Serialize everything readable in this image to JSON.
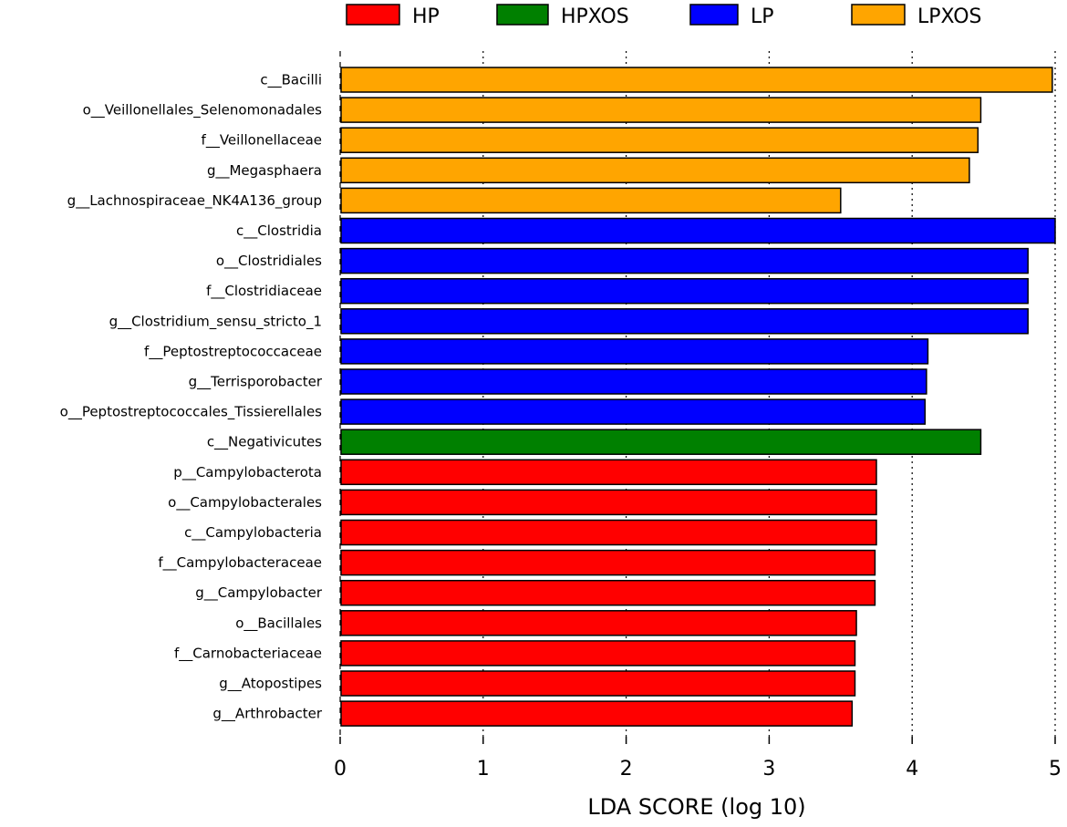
{
  "chart_data": {
    "type": "bar",
    "orientation": "horizontal",
    "title": "",
    "xlabel": "LDA SCORE (log 10)",
    "ylabel": "",
    "xlim": [
      0,
      5
    ],
    "x_ticks": [
      "0",
      "1",
      "2",
      "3",
      "4",
      "5"
    ],
    "grid": "vertical dotted",
    "legend_position": "top",
    "groups": [
      {
        "name": "HP",
        "color": "#ff0000"
      },
      {
        "name": "HPXOS",
        "color": "#008000"
      },
      {
        "name": "LP",
        "color": "#0000ff"
      },
      {
        "name": "LPXOS",
        "color": "#ffa500"
      }
    ],
    "bars": [
      {
        "label": "c__Bacilli",
        "value": 4.98,
        "group": "LPXOS"
      },
      {
        "label": "o__Veillonellales_Selenomonadales",
        "value": 4.48,
        "group": "LPXOS"
      },
      {
        "label": "f__Veillonellaceae",
        "value": 4.46,
        "group": "LPXOS"
      },
      {
        "label": "g__Megasphaera",
        "value": 4.4,
        "group": "LPXOS"
      },
      {
        "label": "g__Lachnospiraceae_NK4A136_group",
        "value": 3.5,
        "group": "LPXOS"
      },
      {
        "label": "c__Clostridia",
        "value": 5.0,
        "group": "LP"
      },
      {
        "label": "o__Clostridiales",
        "value": 4.81,
        "group": "LP"
      },
      {
        "label": "f__Clostridiaceae",
        "value": 4.81,
        "group": "LP"
      },
      {
        "label": "g__Clostridium_sensu_stricto_1",
        "value": 4.81,
        "group": "LP"
      },
      {
        "label": "f__Peptostreptococcaceae",
        "value": 4.11,
        "group": "LP"
      },
      {
        "label": "g__Terrisporobacter",
        "value": 4.1,
        "group": "LP"
      },
      {
        "label": "o__Peptostreptococcales_Tissierellales",
        "value": 4.09,
        "group": "LP"
      },
      {
        "label": "c__Negativicutes",
        "value": 4.48,
        "group": "HPXOS"
      },
      {
        "label": "p__Campylobacterota",
        "value": 3.75,
        "group": "HP"
      },
      {
        "label": "o__Campylobacterales",
        "value": 3.75,
        "group": "HP"
      },
      {
        "label": "c__Campylobacteria",
        "value": 3.75,
        "group": "HP"
      },
      {
        "label": "f__Campylobacteraceae",
        "value": 3.74,
        "group": "HP"
      },
      {
        "label": "g__Campylobacter",
        "value": 3.74,
        "group": "HP"
      },
      {
        "label": "o__Bacillales",
        "value": 3.61,
        "group": "HP"
      },
      {
        "label": "f__Carnobacteriaceae",
        "value": 3.6,
        "group": "HP"
      },
      {
        "label": "g__Atopostipes",
        "value": 3.6,
        "group": "HP"
      },
      {
        "label": "g__Arthrobacter",
        "value": 3.58,
        "group": "HP"
      }
    ]
  }
}
